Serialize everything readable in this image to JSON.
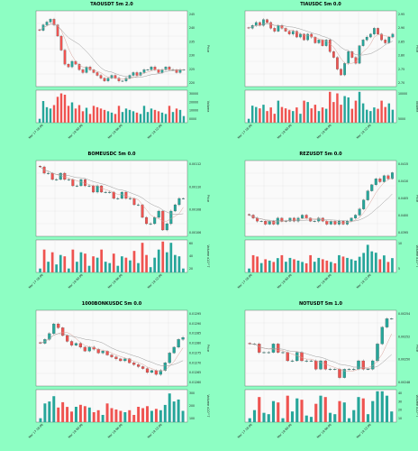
{
  "colors": {
    "background": "#8dfec3",
    "up": "#26a69a",
    "down": "#ef5350",
    "ma_fast": "#d9a39a",
    "ma_slow": "#9a9a9a"
  },
  "charts": [
    {
      "title": "TAOUSDT 5m 2.0",
      "ylabel": "Price",
      "vol_label": "Volume",
      "price_ticks": [
        "245",
        "240",
        "235",
        "230",
        "225",
        "220"
      ],
      "vol_ticks": [
        "30000",
        "20000",
        "10000",
        "0000"
      ],
      "x_ticks": [
        "Mar 17 18:00",
        "Mar 18 00:00",
        "Mar 18 06:00",
        "Mar 18 12:00"
      ]
    },
    {
      "title": "TIAUSDC 5m 0.0",
      "ylabel": "Price",
      "vol_label": "Volume",
      "price_ticks": [
        "2.95",
        "2.90",
        "2.85",
        "2.80",
        "2.75",
        "2.70"
      ],
      "vol_ticks": [
        "10000",
        "5000"
      ],
      "x_ticks": [
        "Mar 17 18:00",
        "Mar 18 00:00",
        "Mar 18 06:00",
        "Mar 18 12:00"
      ]
    },
    {
      "title": "BOMEUSDC 5m 0.0",
      "ylabel": "Price",
      "vol_label": "Volume x10^7",
      "price_ticks": [
        "0.00112",
        "0.00110",
        "0.00108",
        "0.00106"
      ],
      "vol_ticks": [
        "60",
        "40",
        "20"
      ],
      "x_ticks": [
        "Mar 17 18:00",
        "Mar 18 00:00",
        "Mar 18 06:00",
        "Mar 18 12:00"
      ]
    },
    {
      "title": "REZUSDT 5m 0.0",
      "ylabel": "Price",
      "vol_label": "Volume x10^7",
      "price_ticks": [
        "0.0415",
        "0.0410",
        "0.0405",
        "0.0400",
        "0.0395"
      ],
      "vol_ticks": [
        "10",
        "5"
      ],
      "x_ticks": [
        "Mar 17 18:00",
        "Mar 18 00:00",
        "Mar 18 06:00",
        "Mar 18 12:00"
      ]
    },
    {
      "title": "1000BONKUSDC 5m 0.0",
      "ylabel": "Price",
      "vol_label": "Volume x10^7",
      "price_ticks": [
        "0.01295",
        "0.01290",
        "0.01285",
        "0.01280",
        "0.01275",
        "0.01270",
        "0.01265",
        "0.01260"
      ],
      "vol_ticks": [
        "300",
        "200",
        "100"
      ],
      "x_ticks": [
        "Mar 17 18:00",
        "Mar 18 00:00",
        "Mar 18 06:00",
        "Mar 18 12:00"
      ]
    },
    {
      "title": "NOTUSDT 5m 1.0",
      "ylabel": "Price",
      "vol_label": "Volume x10^7",
      "price_ticks": [
        "0.00254",
        "0.00252",
        "0.00250",
        "0.00248"
      ],
      "vol_ticks": [
        "40",
        "30",
        "20",
        "10"
      ],
      "x_ticks": [
        "Mar 17 18:00",
        "Mar 18 00:00",
        "Mar 18 06:00",
        "Mar 18 12:00"
      ]
    }
  ],
  "chart_data": [
    {
      "type": "candlestick",
      "title": "TAOUSDT 5m 2.0",
      "ylabel": "Price",
      "volume_label": "Volume",
      "ylim": [
        220,
        247
      ],
      "close": [
        240,
        242,
        243,
        244,
        242,
        238,
        233,
        228,
        227,
        229,
        228,
        226,
        225,
        227,
        226,
        225,
        224,
        223,
        222,
        223,
        224,
        223,
        222,
        222,
        223,
        224,
        225,
        224,
        225,
        226,
        226,
        227,
        226,
        225,
        226,
        227,
        226,
        226,
        225,
        226,
        226
      ]
    },
    {
      "type": "candlestick",
      "title": "TIAUSDC 5m 0.0",
      "ylabel": "Price",
      "volume_label": "Volume",
      "ylim": [
        2.7,
        2.96
      ],
      "close": [
        2.9,
        2.91,
        2.92,
        2.91,
        2.93,
        2.92,
        2.9,
        2.89,
        2.91,
        2.9,
        2.89,
        2.88,
        2.89,
        2.87,
        2.88,
        2.86,
        2.88,
        2.87,
        2.85,
        2.86,
        2.84,
        2.86,
        2.82,
        2.8,
        2.76,
        2.74,
        2.78,
        2.82,
        2.8,
        2.78,
        2.84,
        2.86,
        2.87,
        2.88,
        2.9,
        2.88,
        2.86,
        2.85,
        2.87,
        2.88
      ]
    },
    {
      "type": "candlestick",
      "title": "BOMEUSDC 5m 0.0",
      "ylabel": "Price",
      "volume_label": "Volume x10^7",
      "ylim": [
        0.00103,
        0.00115
      ],
      "close": [
        0.00114,
        0.00113,
        0.00113,
        0.00112,
        0.00112,
        0.00113,
        0.00112,
        0.00112,
        0.00111,
        0.00111,
        0.00112,
        0.00111,
        0.00111,
        0.0011,
        0.00111,
        0.0011,
        0.0011,
        0.0011,
        0.00109,
        0.00109,
        0.0011,
        0.00109,
        0.00109,
        0.00108,
        0.00108,
        0.00106,
        0.00105,
        0.00105,
        0.00106,
        0.00107,
        0.00104,
        0.00105,
        0.00107,
        0.00108,
        0.00109,
        0.00109
      ]
    },
    {
      "type": "candlestick",
      "title": "REZUSDT 5m 0.0",
      "ylabel": "Price",
      "volume_label": "Volume x10^7",
      "ylim": [
        0.0393,
        0.0418
      ],
      "close": [
        0.04,
        0.0399,
        0.0398,
        0.0398,
        0.0397,
        0.0398,
        0.0397,
        0.0399,
        0.0398,
        0.0398,
        0.0399,
        0.0398,
        0.0399,
        0.04,
        0.0399,
        0.0398,
        0.0398,
        0.0399,
        0.0398,
        0.0397,
        0.0398,
        0.0397,
        0.0398,
        0.0397,
        0.0398,
        0.0399,
        0.04,
        0.0402,
        0.0405,
        0.0408,
        0.041,
        0.0412,
        0.0411,
        0.0413,
        0.0412,
        0.0414
      ]
    },
    {
      "type": "candlestick",
      "title": "1000BONKUSDC 5m 0.0",
      "ylabel": "Price",
      "volume_label": "Volume x10^7",
      "ylim": [
        0.01258,
        0.01297
      ],
      "close": [
        0.0128,
        0.01282,
        0.01285,
        0.0129,
        0.01288,
        0.01284,
        0.01281,
        0.01279,
        0.0128,
        0.01278,
        0.01276,
        0.01278,
        0.01277,
        0.01275,
        0.01276,
        0.01274,
        0.01273,
        0.01272,
        0.01271,
        0.01272,
        0.0127,
        0.01269,
        0.01268,
        0.01267,
        0.01265,
        0.01266,
        0.01264,
        0.01266,
        0.0127,
        0.01275,
        0.01278,
        0.01282,
        0.01283
      ]
    },
    {
      "type": "candlestick",
      "title": "NOTUSDT 5m 1.0",
      "ylabel": "Price",
      "volume_label": "Volume x10^7",
      "ylim": [
        0.00246,
        0.00255
      ],
      "close": [
        0.00251,
        0.00251,
        0.0025,
        0.0025,
        0.0025,
        0.00251,
        0.0025,
        0.0025,
        0.00249,
        0.00249,
        0.0025,
        0.00249,
        0.00249,
        0.00249,
        0.00248,
        0.00249,
        0.00248,
        0.00248,
        0.00248,
        0.00247,
        0.00248,
        0.00248,
        0.00248,
        0.00249,
        0.00248,
        0.00248,
        0.00249,
        0.00251,
        0.00253,
        0.00254,
        0.00254
      ]
    }
  ]
}
